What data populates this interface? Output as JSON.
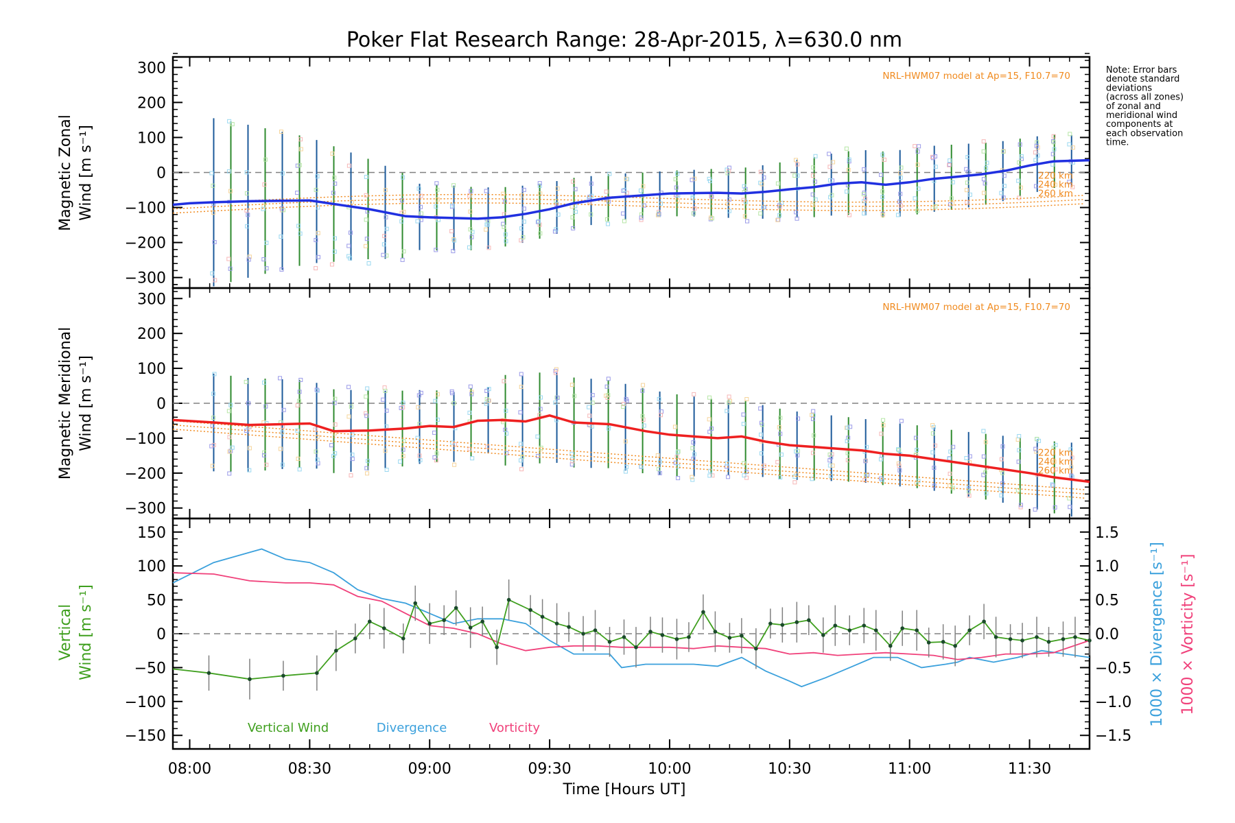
{
  "title": "Poker Flat Research Range: 28-Apr-2015, λ=630.0 nm",
  "note_lines": [
    "Note: Error bars",
    "denote standard",
    "deviations",
    "(across all zones)",
    "of zonal and",
    "meridional wind",
    "components at",
    "each observation",
    "time."
  ],
  "colors": {
    "zonal": "#2030e0",
    "meridional": "#ee2020",
    "model": "#f08a1e",
    "vertical": "#3f9f1e",
    "divergence": "#3aa0dc",
    "vorticity": "#f0407a",
    "errorbar_green": "#2e8a2e",
    "errorbar_blue": "#1c5a9a",
    "zero_line": "#808080"
  },
  "x_axis": {
    "label": "Time [Hours UT]",
    "ticks": [
      "08:00",
      "08:30",
      "09:00",
      "09:30",
      "10:00",
      "10:30",
      "11:00",
      "11:30"
    ],
    "tick_hours": [
      8.0,
      8.5,
      9.0,
      9.5,
      10.0,
      10.5,
      11.0,
      11.5
    ],
    "range_hours": [
      7.93,
      11.75
    ]
  },
  "chart_data": [
    {
      "type": "line",
      "panel": "zonal",
      "ylabel_line1": "Magnetic Zonal",
      "ylabel_line2": "Wind",
      "ylabel_units": "[m s⁻¹]",
      "ylim": [
        -330,
        330
      ],
      "yticks": [
        "300",
        "200",
        "100",
        "0",
        "−100",
        "−200",
        "−300"
      ],
      "ytick_values": [
        300,
        200,
        100,
        0,
        -100,
        -200,
        -300
      ],
      "model_label": "NRL-HWM07 model at Ap=15, F10.7=70",
      "model_alt_labels": [
        "220 km",
        "240 km",
        "260 km"
      ],
      "x": [
        7.93,
        8.0,
        8.1,
        8.25,
        8.5,
        8.75,
        8.9,
        9.0,
        9.1,
        9.2,
        9.3,
        9.4,
        9.5,
        9.6,
        9.75,
        10.0,
        10.2,
        10.3,
        10.4,
        10.5,
        10.6,
        10.7,
        10.8,
        10.9,
        11.0,
        11.1,
        11.2,
        11.3,
        11.4,
        11.5,
        11.6,
        11.75
      ],
      "y": [
        -92,
        -88,
        -85,
        -82,
        -80,
        -105,
        -125,
        -128,
        -130,
        -132,
        -128,
        -118,
        -105,
        -88,
        -72,
        -60,
        -58,
        -60,
        -55,
        -48,
        -42,
        -32,
        -28,
        -35,
        -28,
        -18,
        -12,
        -5,
        5,
        20,
        32,
        35
      ],
      "series": [
        {
          "name": "Magnetic Zonal Wind",
          "values_ref": "y"
        }
      ]
    },
    {
      "type": "line",
      "panel": "meridional",
      "ylabel_line1": "Magnetic Meridional",
      "ylabel_line2": "Wind",
      "ylabel_units": "[m s⁻¹]",
      "ylim": [
        -330,
        330
      ],
      "yticks": [
        "300",
        "200",
        "100",
        "0",
        "−100",
        "−200",
        "−300"
      ],
      "ytick_values": [
        300,
        200,
        100,
        0,
        -100,
        -200,
        -300
      ],
      "model_label": "NRL-HWM07 model at Ap=15, F10.7=70",
      "model_alt_labels": [
        "220 km",
        "240 km",
        "260 km"
      ],
      "x": [
        7.93,
        8.1,
        8.25,
        8.5,
        8.6,
        8.75,
        8.9,
        9.0,
        9.1,
        9.2,
        9.3,
        9.4,
        9.5,
        9.6,
        9.75,
        9.9,
        10.0,
        10.1,
        10.2,
        10.3,
        10.4,
        10.5,
        10.6,
        10.7,
        10.8,
        10.9,
        11.0,
        11.1,
        11.2,
        11.3,
        11.4,
        11.5,
        11.6,
        11.75
      ],
      "y": [
        -48,
        -55,
        -62,
        -58,
        -80,
        -78,
        -72,
        -65,
        -68,
        -50,
        -48,
        -52,
        -35,
        -55,
        -60,
        -80,
        -90,
        -95,
        -100,
        -95,
        -110,
        -120,
        -125,
        -130,
        -135,
        -145,
        -150,
        -160,
        -170,
        -180,
        -190,
        -200,
        -212,
        -225
      ]
    },
    {
      "type": "line",
      "panel": "vertical",
      "ylabel_line1": "Vertical",
      "ylabel_line2": "Wind",
      "ylabel_units": "[m s⁻¹]",
      "ylim": [
        -170,
        170
      ],
      "yticks": [
        "150",
        "100",
        "50",
        "0",
        "−50",
        "−100",
        "−150"
      ],
      "ytick_values": [
        150,
        100,
        50,
        0,
        -50,
        -100,
        -150
      ],
      "y2_label_div": "1000 × Divergence",
      "y2_label_vor": "1000 × Vorticity",
      "y2_units": "[s⁻¹]",
      "y2lim": [
        -1.7,
        1.7
      ],
      "y2ticks": [
        "1.5",
        "1.0",
        "0.5",
        "0.0",
        "−0.5",
        "−1.0",
        "−1.5"
      ],
      "y2tick_values": [
        1.5,
        1.0,
        0.5,
        0.0,
        -0.5,
        -1.0,
        -1.5
      ],
      "legend": [
        "Vertical Wind",
        "Divergence",
        "Vorticity"
      ],
      "vertical_x": [
        7.93,
        8.08,
        8.25,
        8.39,
        8.53,
        8.61,
        8.69,
        8.75,
        8.81,
        8.89,
        8.94,
        9.0,
        9.06,
        9.11,
        9.17,
        9.22,
        9.28,
        9.33,
        9.42,
        9.47,
        9.53,
        9.58,
        9.64,
        9.69,
        9.75,
        9.81,
        9.86,
        9.92,
        9.97,
        10.03,
        10.08,
        10.14,
        10.19,
        10.25,
        10.3,
        10.36,
        10.42,
        10.47,
        10.53,
        10.58,
        10.64,
        10.69,
        10.75,
        10.81,
        10.86,
        10.92,
        10.97,
        11.03,
        11.08,
        11.14,
        11.19,
        11.25,
        11.31,
        11.36,
        11.42,
        11.47,
        11.53,
        11.58,
        11.64,
        11.69,
        11.75
      ],
      "vertical_y": [
        -52,
        -58,
        -67,
        -62,
        -58,
        -25,
        -7,
        18,
        8,
        -7,
        45,
        15,
        20,
        38,
        9,
        18,
        -20,
        50,
        35,
        25,
        15,
        10,
        0,
        5,
        -12,
        -5,
        -20,
        3,
        -2,
        -8,
        -5,
        32,
        3,
        -6,
        -3,
        -22,
        15,
        13,
        17,
        20,
        -2,
        12,
        5,
        12,
        5,
        -18,
        8,
        5,
        -13,
        -12,
        -18,
        5,
        18,
        -5,
        -8,
        -10,
        -5,
        -12,
        -8,
        -5,
        -10
      ],
      "divergence_x": [
        7.93,
        8.1,
        8.25,
        8.3,
        8.4,
        8.5,
        8.6,
        8.7,
        8.8,
        8.9,
        9.0,
        9.1,
        9.2,
        9.3,
        9.4,
        9.5,
        9.6,
        9.7,
        9.75,
        9.8,
        9.9,
        10.0,
        10.1,
        10.2,
        10.3,
        10.4,
        10.5,
        10.55,
        10.65,
        10.75,
        10.85,
        10.95,
        11.05,
        11.15,
        11.2,
        11.25,
        11.35,
        11.45,
        11.55,
        11.65,
        11.75
      ],
      "divergence_y": [
        0.75,
        1.05,
        1.2,
        1.25,
        1.1,
        1.05,
        0.9,
        0.65,
        0.52,
        0.45,
        0.3,
        0.15,
        0.22,
        0.22,
        0.15,
        -0.1,
        -0.3,
        -0.3,
        -0.3,
        -0.5,
        -0.45,
        -0.45,
        -0.45,
        -0.48,
        -0.35,
        -0.55,
        -0.7,
        -0.78,
        -0.65,
        -0.5,
        -0.35,
        -0.35,
        -0.5,
        -0.45,
        -0.42,
        -0.35,
        -0.42,
        -0.35,
        -0.25,
        -0.3,
        -0.35
      ],
      "vorticity_x": [
        7.93,
        8.1,
        8.25,
        8.4,
        8.5,
        8.6,
        8.7,
        8.8,
        8.9,
        9.0,
        9.1,
        9.2,
        9.3,
        9.4,
        9.5,
        9.6,
        9.7,
        9.8,
        9.9,
        10.0,
        10.1,
        10.2,
        10.3,
        10.4,
        10.5,
        10.6,
        10.7,
        10.8,
        10.9,
        11.0,
        11.1,
        11.2,
        11.3,
        11.4,
        11.5,
        11.6,
        11.75
      ],
      "vorticity_y": [
        0.9,
        0.88,
        0.78,
        0.75,
        0.75,
        0.72,
        0.55,
        0.48,
        0.3,
        0.12,
        0.08,
        0.0,
        -0.15,
        -0.25,
        -0.2,
        -0.18,
        -0.18,
        -0.2,
        -0.2,
        -0.2,
        -0.22,
        -0.18,
        -0.2,
        -0.22,
        -0.3,
        -0.28,
        -0.32,
        -0.3,
        -0.28,
        -0.3,
        -0.32,
        -0.38,
        -0.35,
        -0.3,
        -0.3,
        -0.28,
        -0.1
      ]
    }
  ]
}
